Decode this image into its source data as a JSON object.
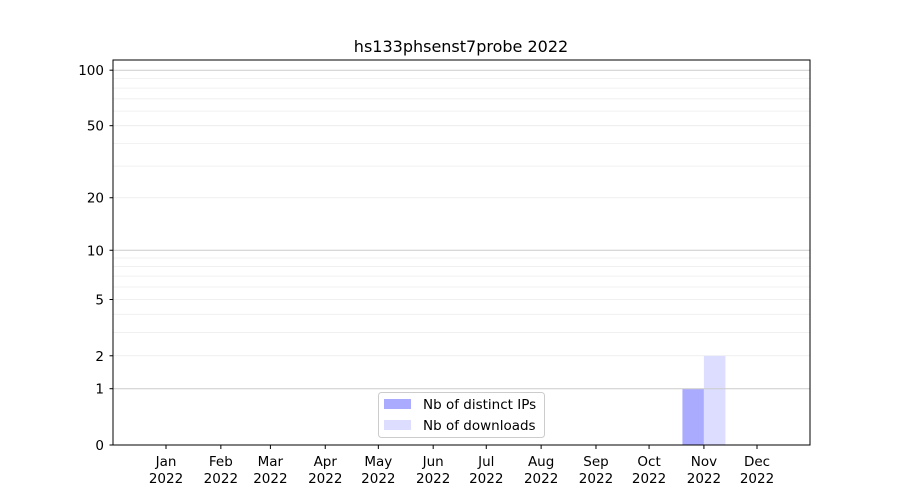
{
  "chart_data": {
    "type": "bar",
    "title": "hs133phsenst7probe 2022",
    "xlabel": "",
    "ylabel": "",
    "yscale": "symlog",
    "ylim": [
      0,
      113
    ],
    "grid": true,
    "legend_position": "lower-center",
    "y_ticks": [
      "0",
      "1",
      "2",
      "5",
      "10",
      "20",
      "50",
      "100"
    ],
    "y_tick_values": [
      0,
      1,
      2,
      5,
      10,
      20,
      50,
      100
    ],
    "x_ticks": [
      {
        "month": "Jan",
        "year": "2022"
      },
      {
        "month": "Feb",
        "year": "2022"
      },
      {
        "month": "Mar",
        "year": "2022"
      },
      {
        "month": "Apr",
        "year": "2022"
      },
      {
        "month": "May",
        "year": "2022"
      },
      {
        "month": "Jun",
        "year": "2022"
      },
      {
        "month": "Jul",
        "year": "2022"
      },
      {
        "month": "Aug",
        "year": "2022"
      },
      {
        "month": "Sep",
        "year": "2022"
      },
      {
        "month": "Oct",
        "year": "2022"
      },
      {
        "month": "Nov",
        "year": "2022"
      },
      {
        "month": "Dec",
        "year": "2022"
      }
    ],
    "categories": [
      "2022-11"
    ],
    "series": [
      {
        "name": "Nb of distinct IPs",
        "color": "#aaaaff",
        "values": [
          1
        ]
      },
      {
        "name": "Nb of downloads",
        "color": "#ddddff",
        "values": [
          2
        ]
      }
    ]
  }
}
